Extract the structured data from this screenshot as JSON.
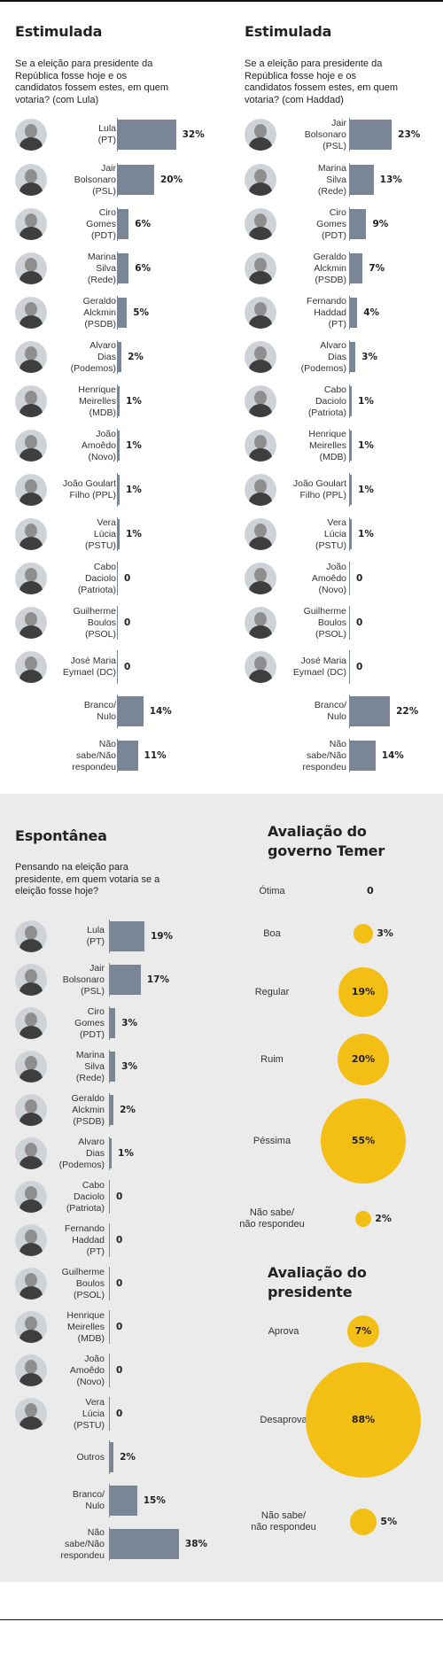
{
  "chart_data": [
    {
      "type": "bar",
      "title": "Estimulada",
      "subtitle": "Se a eleição para presidente da República fosse hoje e os candidatos fossem estes, em quem votaria? (com Lula)",
      "categories": [
        "Lula\n(PT)",
        "Jair\nBolsonaro\n(PSL)",
        "Ciro\nGomes\n(PDT)",
        "Marina\nSilva\n(Rede)",
        "Geraldo\nAlckmin\n(PSDB)",
        "Alvaro\nDias\n(Podemos)",
        "Henrique\nMeirelles\n(MDB)",
        "João\nAmoêdo\n(Novo)",
        "João Goulart\nFilho (PPL)",
        "Vera\nLúcia\n(PSTU)",
        "Cabo\nDaciolo\n(Patriota)",
        "Guilherme\nBoulos\n(PSOL)",
        "José Maria\nEymael (DC)",
        "Branco/\nNulo",
        "Não\nsabe/Não\nrespondeu"
      ],
      "values": [
        32,
        20,
        6,
        6,
        5,
        2,
        1,
        1,
        1,
        1,
        0,
        0,
        0,
        14,
        11
      ],
      "labels": [
        "32%",
        "20%",
        "6%",
        "6%",
        "5%",
        "2%",
        "1%",
        "1%",
        "1%",
        "1%",
        "0",
        "0",
        "0",
        "14%",
        "11%"
      ],
      "photos": [
        true,
        true,
        true,
        true,
        true,
        true,
        true,
        true,
        true,
        true,
        true,
        true,
        true,
        false,
        false
      ],
      "unit": "%"
    },
    {
      "type": "bar",
      "title": "Estimulada",
      "subtitle": "Se a eleição para presidente da República fosse hoje e os candidatos fossem estes, em quem votaria? (com Haddad)",
      "categories": [
        "Jair\nBolsonaro\n(PSL)",
        "Marina\nSilva\n(Rede)",
        "Ciro\nGomes\n(PDT)",
        "Geraldo\nAlckmin\n(PSDB)",
        "Fernando\nHaddad\n(PT)",
        "Alvaro\nDias\n(Podemos)",
        "Cabo\nDaciolo\n(Patriota)",
        "Henrique\nMeirelles\n(MDB)",
        "João Goulart\nFilho (PPL)",
        "Vera\nLúcia\n(PSTU)",
        "João\nAmoêdo\n(Novo)",
        "Guilherme\nBoulos\n(PSOL)",
        "José Maria\nEymael (DC)",
        "Branco/\nNulo",
        "Não\nsabe/Não\nrespondeu"
      ],
      "values": [
        23,
        13,
        9,
        7,
        4,
        3,
        1,
        1,
        1,
        1,
        0,
        0,
        0,
        22,
        14
      ],
      "labels": [
        "23%",
        "13%",
        "9%",
        "7%",
        "4%",
        "3%",
        "1%",
        "1%",
        "1%",
        "1%",
        "0",
        "0",
        "0",
        "22%",
        "14%"
      ],
      "photos": [
        true,
        true,
        true,
        true,
        true,
        true,
        true,
        true,
        true,
        true,
        true,
        true,
        true,
        false,
        false
      ],
      "unit": "%"
    },
    {
      "type": "bar",
      "title": "Espontânea",
      "subtitle": "Pensando na eleição para presidente, em quem votaria se a eleição fosse hoje?",
      "categories": [
        "Lula\n(PT)",
        "Jair\nBolsonaro\n(PSL)",
        "Ciro\nGomes\n(PDT)",
        "Marina\nSilva\n(Rede)",
        "Geraldo\nAlckmin\n(PSDB)",
        "Alvaro\nDias\n(Podemos)",
        "Cabo\nDaciolo\n(Patriota)",
        "Fernando\nHaddad\n(PT)",
        "Guilherme\nBoulos\n(PSOL)",
        "Henrique\nMeirelles\n(MDB)",
        "João\nAmoêdo\n(Novo)",
        "Vera\nLúcia\n(PSTU)",
        "Outros",
        "Branco/\nNulo",
        "Não\nsabe/Não\nrespondeu"
      ],
      "values": [
        19,
        17,
        3,
        3,
        2,
        1,
        0,
        0,
        0,
        0,
        0,
        0,
        2,
        15,
        38
      ],
      "labels": [
        "19%",
        "17%",
        "3%",
        "3%",
        "2%",
        "1%",
        "0",
        "0",
        "0",
        "0",
        "0",
        "0",
        "2%",
        "15%",
        "38%"
      ],
      "photos": [
        true,
        true,
        true,
        true,
        true,
        true,
        true,
        true,
        true,
        true,
        true,
        true,
        false,
        false,
        false
      ],
      "unit": "%"
    },
    {
      "type": "bubble",
      "title": "Avaliação do governo Temer",
      "categories": [
        "Ótima",
        "Boa",
        "Regular",
        "Ruim",
        "Péssima",
        "Não sabe/\nnão respondeu"
      ],
      "values": [
        0,
        3,
        19,
        20,
        55,
        2
      ],
      "labels": [
        "0",
        "3%",
        "19%",
        "20%",
        "55%",
        "2%"
      ],
      "unit": "%",
      "color": "#f3bf15"
    },
    {
      "type": "bubble",
      "title": "Avaliação do presidente",
      "categories": [
        "Aprova",
        "Desaprova",
        "Não sabe/\nnão respondeu"
      ],
      "values": [
        7,
        88,
        5
      ],
      "labels": [
        "7%",
        "88%",
        "5%"
      ],
      "unit": "%",
      "color": "#f3bf15"
    }
  ],
  "colors": {
    "bar": "#7a8595",
    "bubble": "#f3bf15",
    "section_bg": "#ebebeb"
  }
}
